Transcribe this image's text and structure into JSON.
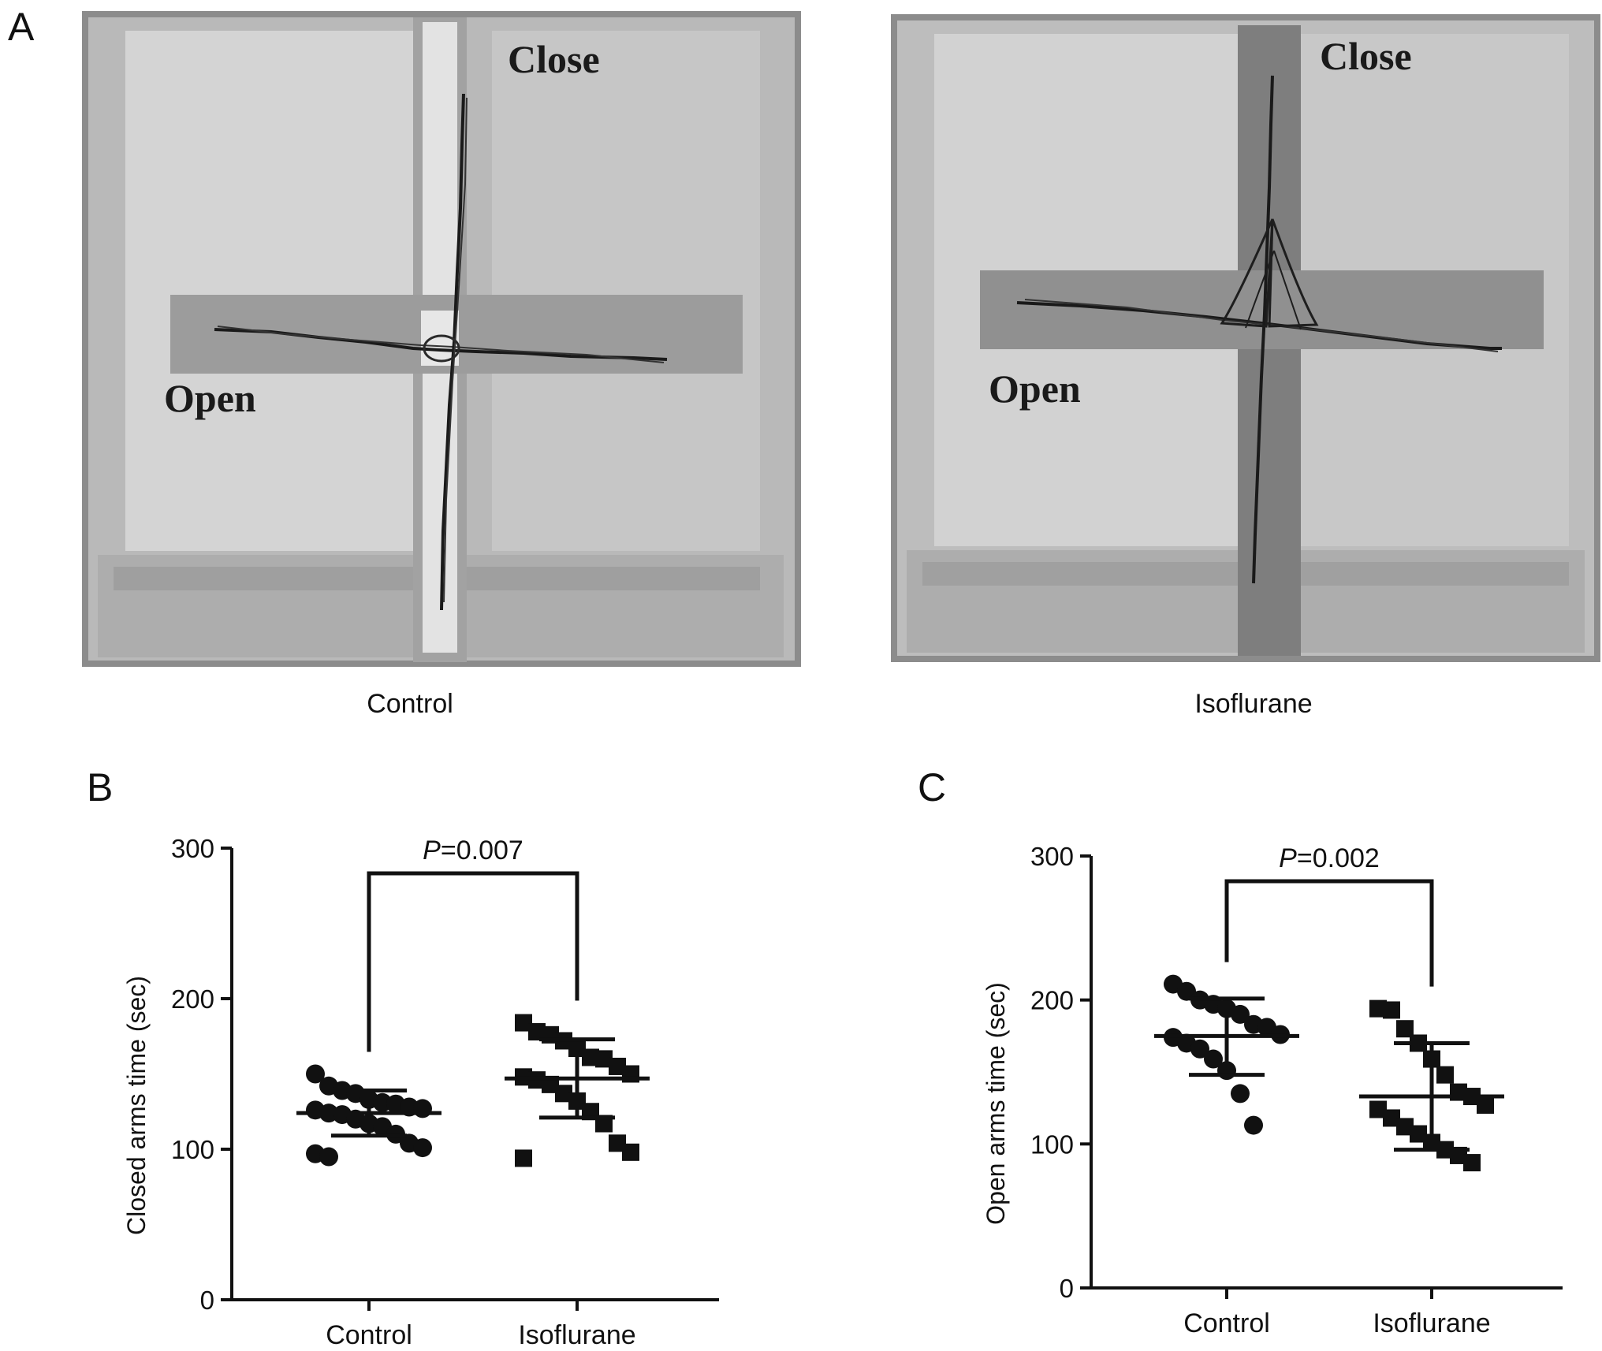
{
  "panel_a": {
    "letter": "A",
    "images": [
      {
        "caption": "Control",
        "close_label": "Close",
        "open_label": "Open"
      },
      {
        "caption": "Isoflurane",
        "close_label": "Close",
        "open_label": "Open"
      }
    ],
    "colors": {
      "background": "#8a8a8a",
      "panel": "#c9c9c9",
      "arm": "#9a9a9a",
      "track": "#1a1a1a"
    }
  },
  "chart_data": [
    {
      "panel": "B",
      "type": "scatter",
      "categories": [
        "Control",
        "Isoflurane"
      ],
      "ylabel": "Closed arms time (sec)",
      "ylim": [
        0,
        300
      ],
      "yticks": [
        0,
        100,
        200,
        300
      ],
      "p_value_prefix": "P",
      "p_value_text": "=0.007",
      "series": [
        {
          "category": "Control",
          "marker": "circle",
          "mean": 124,
          "sd_low": 109,
          "sd_high": 139,
          "values": [
            150,
            142,
            139,
            137,
            133,
            131,
            130,
            128,
            127,
            126,
            124,
            123,
            120,
            117,
            115,
            110,
            104,
            101,
            97,
            95
          ]
        },
        {
          "category": "Isoflurane",
          "marker": "square",
          "mean": 147,
          "sd_low": 121,
          "sd_high": 173,
          "values": [
            184,
            178,
            176,
            172,
            167,
            161,
            160,
            155,
            150,
            148,
            146,
            143,
            137,
            132,
            125,
            117,
            104,
            98,
            94
          ]
        }
      ]
    },
    {
      "panel": "C",
      "type": "scatter",
      "categories": [
        "Control",
        "Isoflurane"
      ],
      "ylabel": "Open arms time (sec)",
      "ylim": [
        0,
        300
      ],
      "yticks": [
        0,
        100,
        200,
        300
      ],
      "p_value_prefix": "P",
      "p_value_text": "=0.002",
      "series": [
        {
          "category": "Control",
          "marker": "circle",
          "mean": 175,
          "sd_low": 148,
          "sd_high": 201,
          "values": [
            211,
            206,
            200,
            197,
            194,
            190,
            183,
            181,
            176,
            174,
            170,
            166,
            159,
            151,
            135,
            113
          ]
        },
        {
          "category": "Isoflurane",
          "marker": "square",
          "mean": 133,
          "sd_low": 96,
          "sd_high": 170,
          "values": [
            194,
            193,
            180,
            170,
            159,
            148,
            136,
            133,
            127,
            124,
            118,
            112,
            107,
            101,
            96,
            92,
            87
          ]
        }
      ]
    }
  ]
}
